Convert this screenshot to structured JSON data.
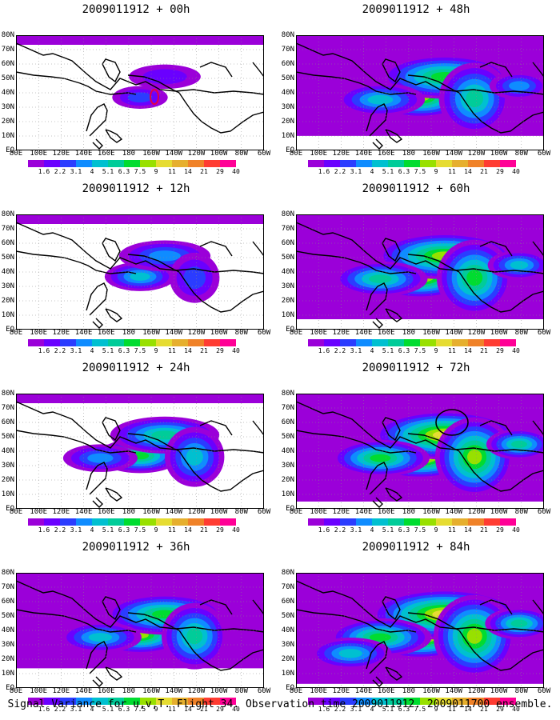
{
  "lat_labels": [
    "80N",
    "70N",
    "60N",
    "50N",
    "40N",
    "30N",
    "20N",
    "10N",
    "EQ"
  ],
  "lon_labels": [
    "80E",
    "100E",
    "120E",
    "140E",
    "160E",
    "180",
    "160W",
    "140W",
    "120W",
    "100W",
    "80W",
    "60W"
  ],
  "colorbar": {
    "levels": [
      "1.6",
      "2.2",
      "3.1",
      "4",
      "5.1",
      "6.3",
      "7.5",
      "9",
      "11",
      "14",
      "21",
      "29",
      "40"
    ],
    "colors": [
      "#9b00d9",
      "#6a00ff",
      "#2b3cff",
      "#0f8cff",
      "#00c0d0",
      "#00cc99",
      "#00dc30",
      "#98e000",
      "#e6dc32",
      "#e6af2d",
      "#f08228",
      "#ff3c32",
      "#ff0096"
    ]
  },
  "panels": [
    {
      "title": "2009011912 + 00h",
      "intensity": 0.12
    },
    {
      "title": "2009011912 + 48h",
      "intensity": 0.72
    },
    {
      "title": "2009011912 + 12h",
      "intensity": 0.32
    },
    {
      "title": "2009011912 + 60h",
      "intensity": 0.8
    },
    {
      "title": "2009011912 + 24h",
      "intensity": 0.5
    },
    {
      "title": "2009011912 + 72h",
      "intensity": 0.86
    },
    {
      "title": "2009011912 + 36h",
      "intensity": 0.62
    },
    {
      "title": "2009011912 + 84h",
      "intensity": 0.92
    }
  ],
  "caption": "Signal Variance for u,v,T. Flight 34. Observation time 2009011912. 2009011700 ensemble."
}
